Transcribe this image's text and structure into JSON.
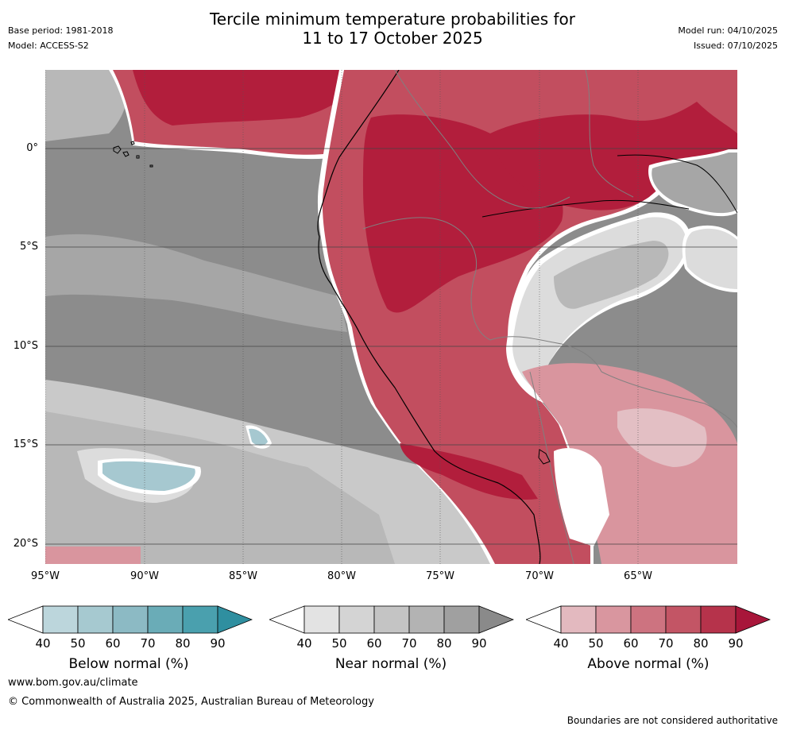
{
  "header": {
    "base_period": "Base period: 1981-2018",
    "model": "Model: ACCESS-S2",
    "title_line1": "Tercile minimum temperature probabilities for",
    "title_line2": "11 to 17 October 2025",
    "model_run": "Model run: 04/10/2025",
    "issued": "Issued: 07/10/2025"
  },
  "map": {
    "lat_labels": [
      "0°",
      "5°S",
      "10°S",
      "15°S",
      "20°S"
    ],
    "lon_labels": [
      "95°W",
      "90°W",
      "85°W",
      "80°W",
      "75°W",
      "70°W",
      "65°W"
    ],
    "colors": {
      "near_base": "#8c8c8c",
      "near_70": "#a6a6a6",
      "near_60": "#b8b8b8",
      "near_50": "#c9c9c9",
      "near_40": "#dcdcdc",
      "above_40": "#e3bfc4",
      "above_50": "#d9959e",
      "above_60": "#cd6f7c",
      "above_70": "#c24e5f",
      "above_80": "#b21e3c",
      "below_40": "#b3cdd4",
      "below_50": "#a6c8d0",
      "white": "#ffffff",
      "coast": "#000000",
      "border": "#808080"
    }
  },
  "legends": [
    {
      "label": "Below normal (%)",
      "ticks": [
        "40",
        "50",
        "60",
        "70",
        "80",
        "90"
      ],
      "colors": [
        "#ffffff",
        "#bcd6dc",
        "#a6c9d0",
        "#8cbac4",
        "#6aacb7",
        "#4aa0ae",
        "#2f8fa0"
      ]
    },
    {
      "label": "Near normal (%)",
      "ticks": [
        "40",
        "50",
        "60",
        "70",
        "80",
        "90"
      ],
      "colors": [
        "#ffffff",
        "#e3e3e3",
        "#d4d4d4",
        "#c4c4c4",
        "#b3b3b3",
        "#a0a0a0",
        "#8a8a8a"
      ]
    },
    {
      "label": "Above normal (%)",
      "ticks": [
        "40",
        "50",
        "60",
        "70",
        "80",
        "90"
      ],
      "colors": [
        "#ffffff",
        "#e3b9bf",
        "#d9969f",
        "#cd7380",
        "#c35565",
        "#b6334b",
        "#a8163a"
      ]
    }
  ],
  "footer": {
    "website": "www.bom.gov.au/climate",
    "copyright": "© Commonwealth of Australia 2025, Australian Bureau of Meteorology",
    "disclaimer": "Boundaries are not considered authoritative"
  }
}
